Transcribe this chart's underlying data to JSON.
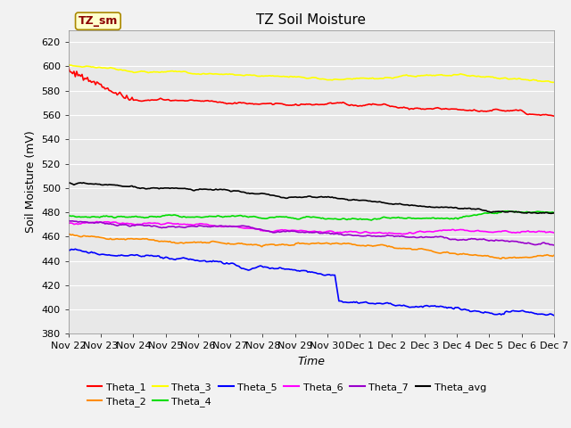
{
  "title": "TZ Soil Moisture",
  "ylabel": "Soil Moisture (mV)",
  "xlabel": "Time",
  "legend_label": "TZ_sm",
  "ylim": [
    380,
    630
  ],
  "plot_bg": "#e8e8e8",
  "fig_bg": "#f2f2f2",
  "series_colors": {
    "Theta_1": "#ff0000",
    "Theta_2": "#ff8c00",
    "Theta_3": "#ffff00",
    "Theta_4": "#00dd00",
    "Theta_5": "#0000ff",
    "Theta_6": "#ff00ff",
    "Theta_7": "#9900cc",
    "Theta_avg": "#000000"
  },
  "legend_order": [
    "Theta_1",
    "Theta_2",
    "Theta_3",
    "Theta_4",
    "Theta_5",
    "Theta_6",
    "Theta_7",
    "Theta_avg"
  ],
  "xtick_labels": [
    "Nov 22",
    "Nov 23",
    "Nov 24",
    "Nov 25",
    "Nov 26",
    "Nov 27",
    "Nov 28",
    "Nov 29",
    "Nov 30",
    "Dec 1",
    "Dec 2",
    "Dec 3",
    "Dec 4",
    "Dec 5",
    "Dec 6",
    "Dec 7"
  ],
  "ytick_step": 20,
  "grid_color": "#ffffff",
  "linewidth": 1.2,
  "n_days": 15
}
